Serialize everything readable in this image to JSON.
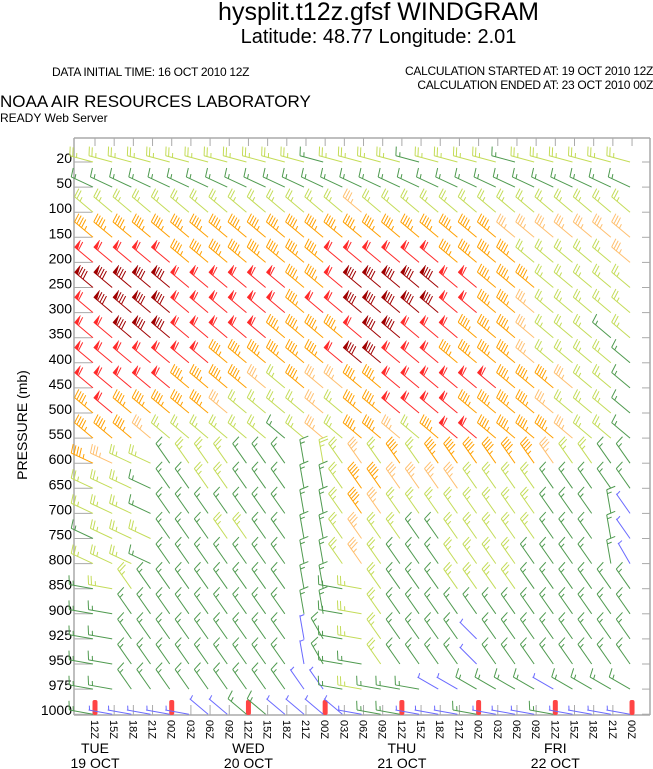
{
  "header": {
    "title": "hysplit.t12z.gfsf WINDGRAM",
    "subtitle": "Latitude: 48.77 Longitude:   2.01",
    "data_initial_time": "DATA INITIAL TIME: 16 OCT 2010 12Z",
    "calc_started": "CALCULATION STARTED AT: 19 OCT 2010 12Z",
    "calc_ended": "CALCULATION ENDED AT: 23 OCT 2010 00Z",
    "lab": "NOAA AIR RESOURCES LABORATORY",
    "server": "READY Web Server"
  },
  "chart_data": {
    "type": "windgram",
    "ylabel": "PRESSURE (mb)",
    "y_reversed": true,
    "levels": [
      "20",
      "50",
      "100",
      "150",
      "200",
      "250",
      "300",
      "350",
      "400",
      "450",
      "500",
      "550",
      "600",
      "650",
      "700",
      "750",
      "800",
      "850",
      "900",
      "925",
      "950",
      "975",
      "1000"
    ],
    "times": [
      "12Z",
      "15Z",
      "18Z",
      "21Z",
      "00Z",
      "03Z",
      "06Z",
      "09Z",
      "12Z",
      "15Z",
      "18Z",
      "21Z",
      "00Z",
      "03Z",
      "06Z",
      "09Z",
      "12Z",
      "15Z",
      "18Z",
      "21Z",
      "00Z",
      "03Z",
      "06Z",
      "09Z",
      "12Z",
      "15Z",
      "18Z",
      "21Z",
      "00Z"
    ],
    "days": [
      {
        "day": "TUE",
        "date": "19 OCT",
        "time_index": 0
      },
      {
        "day": "WED",
        "date": "20 OCT",
        "time_index": 8
      },
      {
        "day": "THU",
        "date": "21 OCT",
        "time_index": 16
      },
      {
        "day": "FRI",
        "date": "22 OCT",
        "time_index": 24
      }
    ],
    "marker_color": "#ff4444",
    "speed_colors": {
      "B": "#6a6aff",
      "G": "#4f9a4f",
      "Y": "#c4dc58",
      "P": "#ffc070",
      "O": "#ffa000",
      "R": "#ff2a2a",
      "D": "#a00000"
    },
    "speed_kt_by_color": {
      "B": 5,
      "G": 15,
      "Y": 25,
      "P": 35,
      "O": 45,
      "R": 60,
      "D": 80
    },
    "rows": [
      {
        "level": "20",
        "colors": "YYYYYYYYYYYYGYYYYGYYYYGYYYYYY",
        "dir": [
          285,
          285,
          285,
          285,
          285,
          285,
          285,
          285,
          285,
          285,
          285,
          285,
          285,
          285,
          285,
          285,
          285,
          285,
          285,
          285,
          285,
          285,
          285,
          285,
          285,
          285,
          285,
          285,
          285
        ]
      },
      {
        "level": "50",
        "colors": "GGGGGGGGGGGGGGGGGGGGGGGGGGGGG",
        "dir": [
          295,
          295,
          295,
          295,
          295,
          295,
          295,
          295,
          295,
          295,
          295,
          295,
          295,
          295,
          295,
          295,
          295,
          295,
          295,
          295,
          295,
          295,
          295,
          295,
          295,
          295,
          295,
          295,
          295
        ]
      },
      {
        "level": "100",
        "colors": "YYYYYYYYYYYYYYPYYYYYYYYYYYYYY",
        "dir": [
          310,
          310,
          310,
          310,
          310,
          310,
          310,
          310,
          310,
          310,
          310,
          310,
          310,
          310,
          310,
          310,
          310,
          310,
          310,
          310,
          310,
          310,
          310,
          310,
          310,
          310,
          310,
          310,
          310
        ]
      },
      {
        "level": "150",
        "colors": "OOOOOOOOOOOOOOOOOOOOOOPPPPPPP",
        "dir": [
          310,
          310,
          310,
          310,
          310,
          310,
          310,
          310,
          310,
          310,
          310,
          310,
          310,
          310,
          310,
          310,
          310,
          310,
          310,
          310,
          310,
          310,
          310,
          310,
          310,
          310,
          310,
          310,
          310
        ]
      },
      {
        "level": "200",
        "colors": "RRRRROOOOOOOORRRRRROOOOYYYYYP",
        "dir": [
          310,
          310,
          310,
          310,
          310,
          310,
          310,
          310,
          310,
          310,
          310,
          310,
          310,
          310,
          310,
          310,
          310,
          310,
          310,
          310,
          310,
          310,
          310,
          310,
          310,
          310,
          310,
          310,
          310
        ]
      },
      {
        "level": "250",
        "colors": "DDDDDRRRRRROORDDDDDRROOOYYYYY",
        "dir": [
          310,
          310,
          310,
          310,
          310,
          310,
          310,
          310,
          310,
          310,
          310,
          310,
          310,
          310,
          310,
          310,
          310,
          310,
          310,
          310,
          310,
          310,
          310,
          310,
          310,
          310,
          310,
          310,
          310
        ]
      },
      {
        "level": "300",
        "colors": "RDDDDRRRRRRORRDDDDDRROOPYYYYY",
        "dir": [
          310,
          310,
          310,
          310,
          310,
          310,
          310,
          310,
          310,
          310,
          310,
          310,
          310,
          310,
          310,
          310,
          310,
          310,
          310,
          310,
          310,
          310,
          310,
          310,
          310,
          310,
          310,
          310,
          310
        ]
      },
      {
        "level": "350",
        "colors": "RRDDDRRRRROOOORDDRRROOOPYYYGY",
        "dir": [
          310,
          310,
          310,
          310,
          310,
          310,
          310,
          310,
          310,
          310,
          310,
          310,
          310,
          310,
          310,
          310,
          310,
          310,
          310,
          310,
          310,
          310,
          310,
          310,
          310,
          310,
          310,
          310,
          310
        ]
      },
      {
        "level": "400",
        "colors": "RRRRRRROOOOOORDDRRROOOOPYYYYG",
        "dir": [
          310,
          310,
          310,
          310,
          310,
          310,
          310,
          310,
          310,
          310,
          310,
          310,
          310,
          310,
          310,
          310,
          310,
          310,
          310,
          310,
          310,
          310,
          310,
          310,
          310,
          310,
          310,
          310,
          310
        ]
      },
      {
        "level": "450",
        "colors": "RRRRROOOOPYOPPOORRRRRROOOPYYG",
        "dir": [
          310,
          310,
          310,
          310,
          310,
          310,
          310,
          310,
          310,
          310,
          310,
          310,
          310,
          310,
          310,
          310,
          310,
          310,
          310,
          310,
          310,
          310,
          310,
          310,
          310,
          310,
          310,
          310,
          310
        ]
      },
      {
        "level": "500",
        "colors": "OROOOOOPYYYYPYOORRRROOOOPYYYG",
        "dir": [
          310,
          310,
          310,
          310,
          310,
          310,
          310,
          310,
          310,
          310,
          310,
          310,
          310,
          310,
          310,
          310,
          310,
          310,
          310,
          310,
          310,
          310,
          310,
          310,
          310,
          310,
          310,
          310,
          310
        ]
      },
      {
        "level": "550",
        "colors": "OOOPYYYYYYGYPYOOPYORROOOOPYYG",
        "dir": [
          310,
          310,
          310,
          310,
          310,
          310,
          310,
          310,
          310,
          310,
          310,
          310,
          310,
          310,
          310,
          310,
          310,
          310,
          310,
          310,
          310,
          310,
          310,
          310,
          310,
          310,
          310,
          310,
          310
        ]
      },
      {
        "level": "600",
        "colors": "OPYYGYYYGGGGYYPYOYOOOOOOPYYGG",
        "dir": [
          295,
          295,
          295,
          295,
          325,
          325,
          325,
          325,
          325,
          325,
          325,
          350,
          350,
          325,
          325,
          325,
          325,
          325,
          325,
          325,
          325,
          325,
          325,
          325,
          325,
          325,
          325,
          325,
          325
        ]
      },
      {
        "level": "650",
        "colors": "YYYGGGYYGGGGGYOOPPPPYYYYGGGGG",
        "dir": [
          295,
          295,
          295,
          295,
          325,
          325,
          325,
          325,
          325,
          325,
          325,
          350,
          350,
          325,
          325,
          325,
          325,
          325,
          325,
          325,
          325,
          325,
          325,
          325,
          325,
          325,
          325,
          325,
          325
        ]
      },
      {
        "level": "700",
        "colors": "YYYGGGGGGGGGGYOPYYYYYYYYGGGGB",
        "dir": [
          295,
          295,
          295,
          295,
          325,
          325,
          325,
          325,
          325,
          325,
          325,
          350,
          350,
          325,
          325,
          325,
          325,
          325,
          325,
          325,
          325,
          325,
          325,
          325,
          325,
          325,
          325,
          350,
          325
        ]
      },
      {
        "level": "750",
        "colors": "GYYYGGGYYGGGGYPYYGGYYYYYGGGGB",
        "dir": [
          295,
          295,
          295,
          295,
          325,
          325,
          325,
          325,
          325,
          325,
          325,
          350,
          350,
          325,
          325,
          325,
          325,
          325,
          325,
          325,
          325,
          325,
          325,
          325,
          325,
          325,
          325,
          350,
          325
        ]
      },
      {
        "level": "800",
        "colors": "YYYGGGGGGGGGGYPYGGGYYYYGGGGGB",
        "dir": [
          295,
          295,
          295,
          295,
          325,
          325,
          325,
          325,
          325,
          325,
          325,
          350,
          350,
          325,
          325,
          325,
          325,
          325,
          325,
          325,
          325,
          325,
          325,
          325,
          325,
          325,
          325,
          350,
          330
        ]
      },
      {
        "level": "850",
        "colors": "GYYGGGGGGGGGGGYYGGGYYYYGGGGGG",
        "dir": [
          280,
          280,
          325,
          325,
          325,
          325,
          325,
          325,
          325,
          325,
          325,
          350,
          350,
          280,
          280,
          325,
          325,
          325,
          325,
          325,
          325,
          325,
          325,
          325,
          325,
          325,
          325,
          325,
          325
        ]
      },
      {
        "level": "900",
        "colors": "GGGGGGGGGGGGGGYYGGGGGGGGGGGGG",
        "dir": [
          280,
          280,
          325,
          325,
          325,
          325,
          325,
          325,
          325,
          325,
          325,
          350,
          350,
          280,
          280,
          325,
          325,
          325,
          325,
          325,
          325,
          325,
          325,
          325,
          325,
          325,
          325,
          325,
          325
        ]
      },
      {
        "level": "925",
        "colors": "GGGGGGGGGGGBGGYYGGGGBGGGGGGGG",
        "dir": [
          280,
          280,
          325,
          325,
          325,
          325,
          325,
          325,
          325,
          325,
          325,
          350,
          330,
          280,
          280,
          325,
          325,
          325,
          325,
          325,
          315,
          325,
          325,
          325,
          325,
          325,
          325,
          325,
          325
        ]
      },
      {
        "level": "950",
        "colors": "GGGGGGGGGGGBGGGYGGGGBGGGGGGGG",
        "dir": [
          280,
          280,
          325,
          325,
          325,
          325,
          325,
          325,
          325,
          325,
          325,
          350,
          330,
          280,
          280,
          325,
          325,
          325,
          325,
          325,
          315,
          325,
          325,
          325,
          325,
          325,
          325,
          325,
          325
        ]
      },
      {
        "level": "975",
        "colors": "GGGGGGGGGGGBBGYGGGBBGGGGBGGGG",
        "dir": [
          280,
          280,
          325,
          325,
          325,
          325,
          325,
          325,
          325,
          325,
          325,
          325,
          325,
          280,
          280,
          280,
          280,
          280,
          300,
          300,
          300,
          300,
          300,
          300,
          300,
          300,
          300,
          300,
          300
        ]
      },
      {
        "level": "1000",
        "colors": "GBBBBBBBGGBBBBBGGBBBGBBBGBBBB",
        "dir": [
          280,
          280,
          280,
          280,
          280,
          280,
          310,
          310,
          310,
          310,
          310,
          310,
          310,
          310,
          280,
          280,
          280,
          280,
          280,
          280,
          280,
          280,
          280,
          280,
          280,
          280,
          280,
          280,
          280
        ]
      }
    ]
  }
}
